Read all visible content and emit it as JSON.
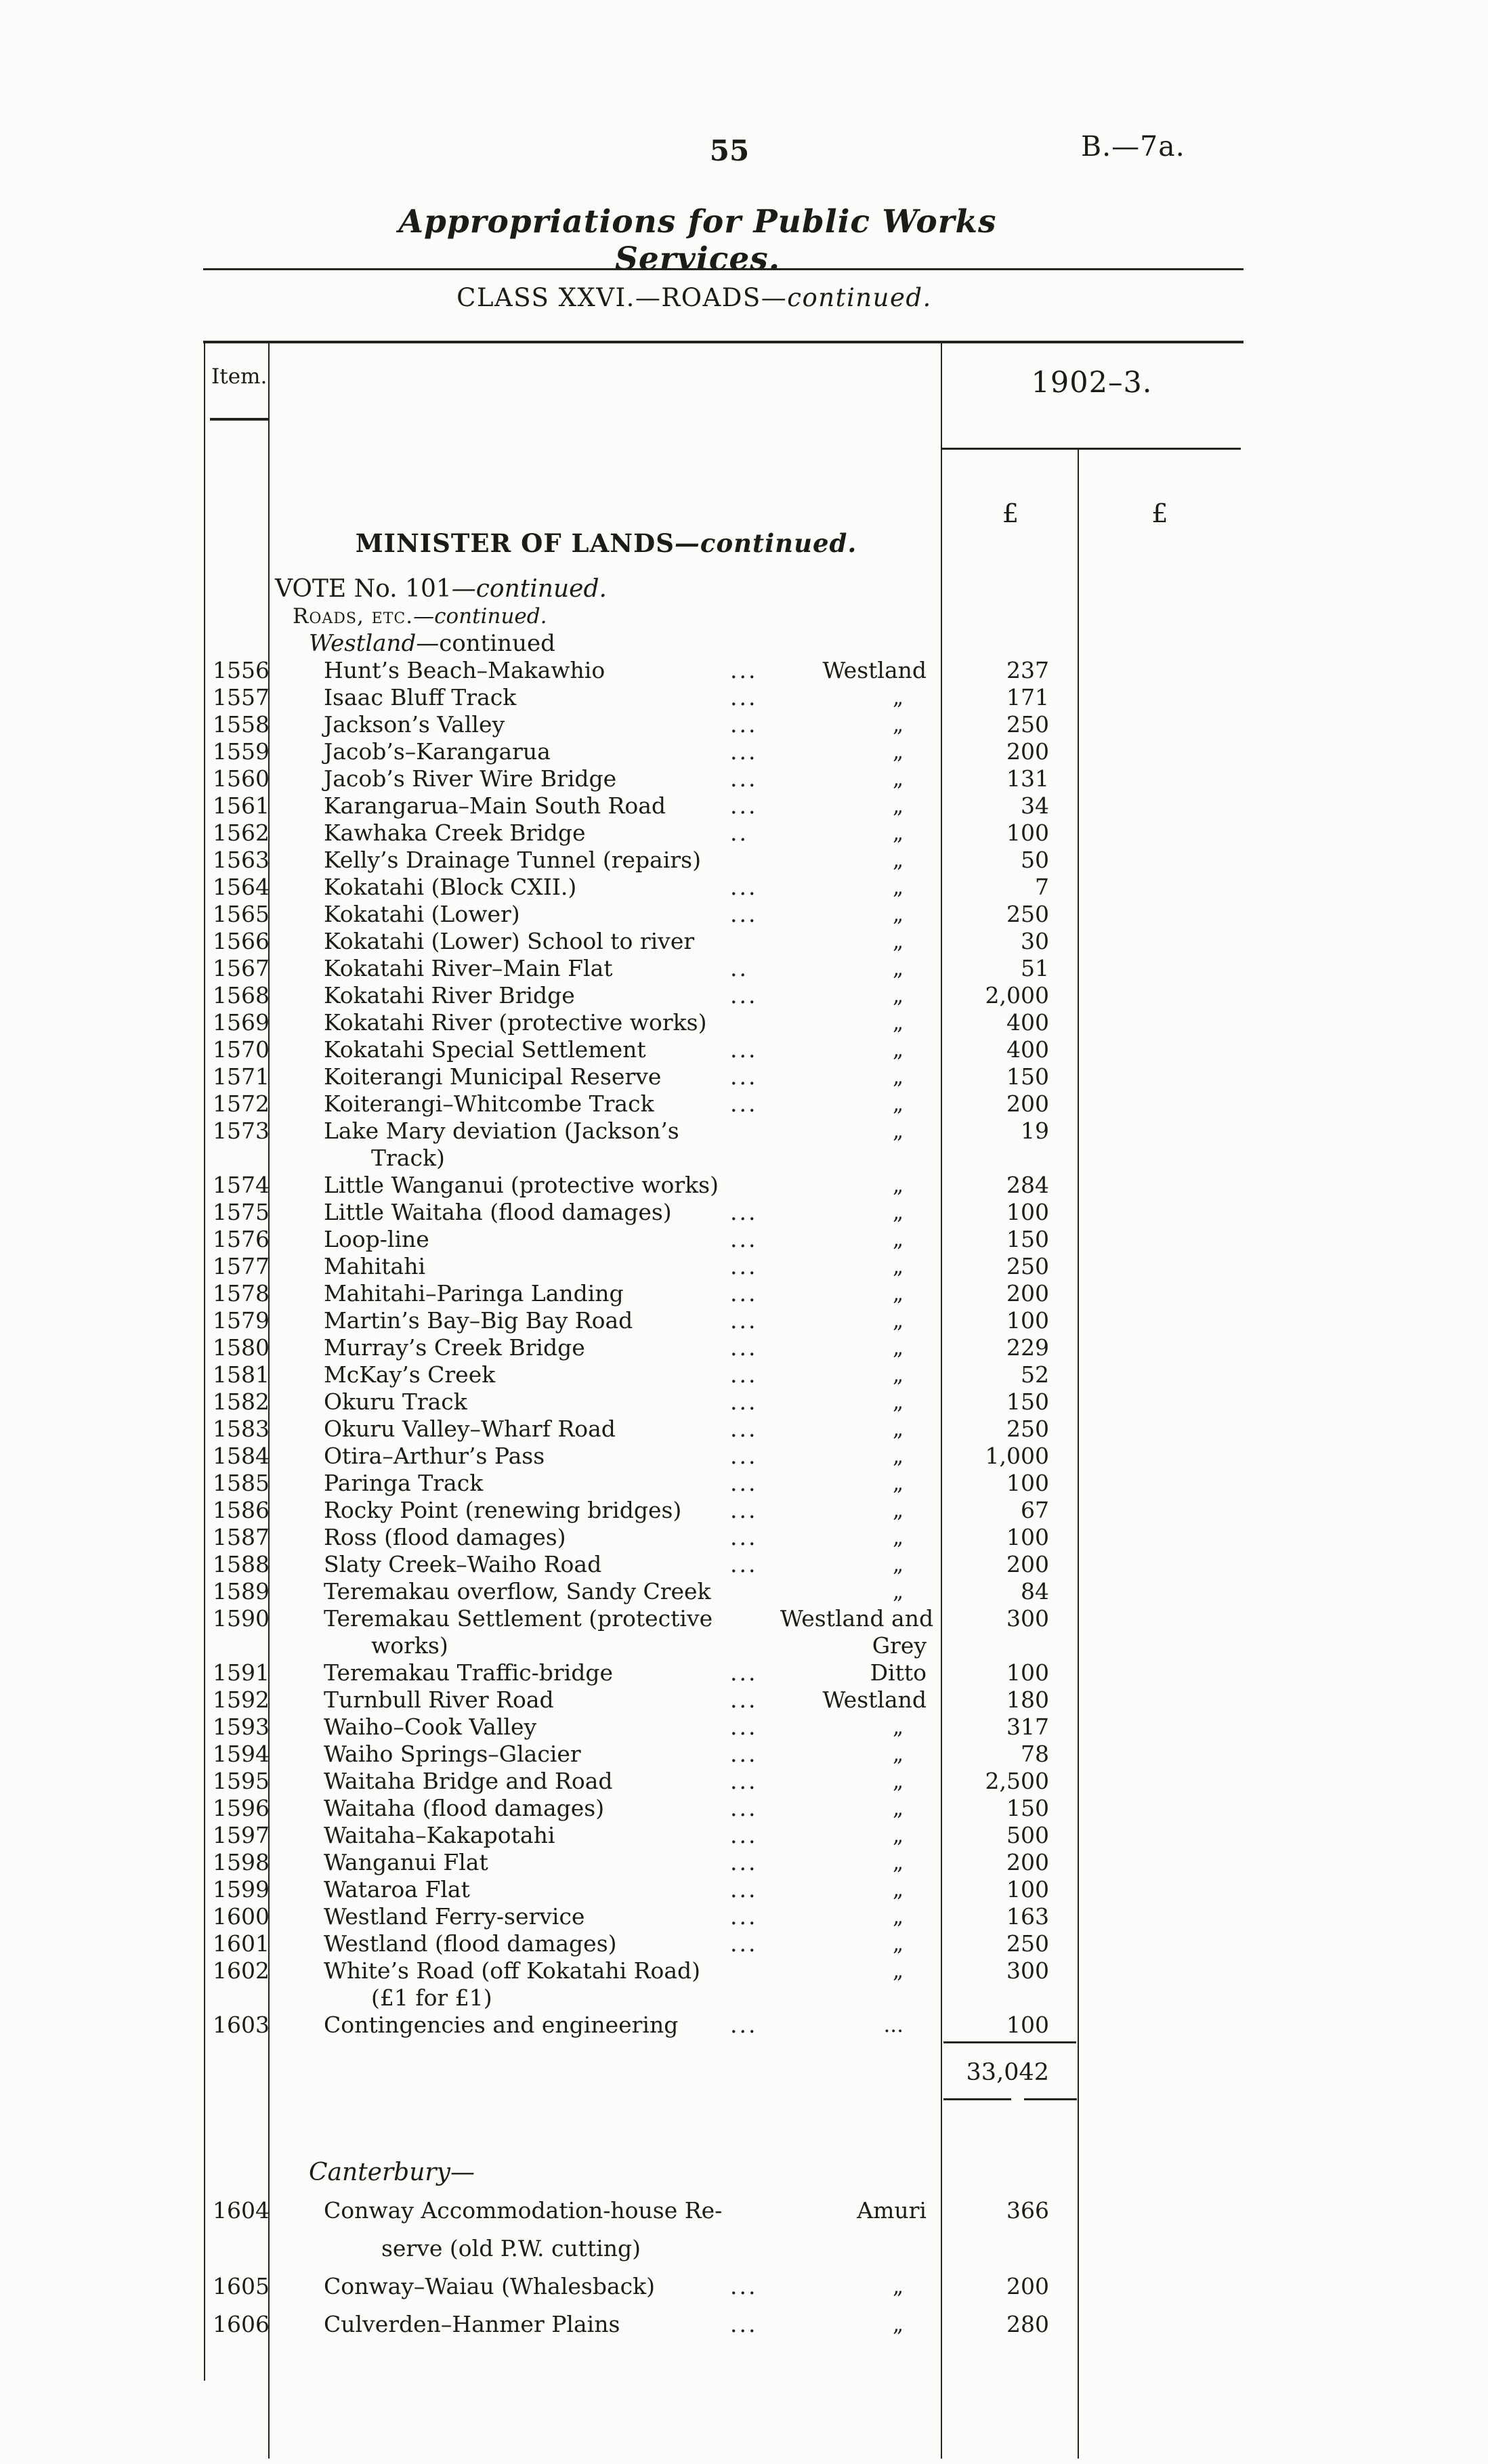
{
  "page": {
    "number": "55",
    "ref": "B.—7a."
  },
  "title": "Appropriations for Public Works Services.",
  "class_heading": {
    "main": "CLASS XXVI.—ROADS—",
    "continued": "continued."
  },
  "colors": {
    "ink": "#1b1b18",
    "paper": "#fcfcfa"
  },
  "table": {
    "item_header": "Item.",
    "year_header": "1902–3.",
    "pound1": "£",
    "pound2": "£",
    "minister_heading": {
      "main": "MINISTER OF LANDS",
      "continued": "—continued."
    },
    "vote_heading": {
      "main": "VOTE No. 101",
      "continued": "—continued."
    },
    "roads_heading": {
      "main": "Roads, etc.",
      "continued": "—continued."
    },
    "westland_heading": {
      "italic": "Westland",
      "rest": "—continued"
    },
    "canterbury_heading": "Canterbury—",
    "westland_total": "33,042",
    "rows": [
      {
        "item": "1556",
        "desc": "Hunt’s Beach–Makawhio",
        "dots": "...",
        "loc": "Westland",
        "amt": "237"
      },
      {
        "item": "1557",
        "desc": "Isaac Bluff Track",
        "dots": "...",
        "loc": "„",
        "amt": "171"
      },
      {
        "item": "1558",
        "desc": "Jackson’s Valley",
        "dots": "...",
        "loc": "„",
        "amt": "250"
      },
      {
        "item": "1559",
        "desc": "Jacob’s–Karangarua",
        "dots": "...",
        "loc": "„",
        "amt": "200"
      },
      {
        "item": "1560",
        "desc": "Jacob’s River Wire Bridge",
        "dots": "...",
        "loc": "„",
        "amt": "131"
      },
      {
        "item": "1561",
        "desc": "Karangarua–Main South Road",
        "dots": "...",
        "loc": "„",
        "amt": "34"
      },
      {
        "item": "1562",
        "desc": "Kawhaka Creek Bridge",
        "dots": "..",
        "loc": "„",
        "amt": "100"
      },
      {
        "item": "1563",
        "desc": "Kelly’s Drainage Tunnel (repairs)",
        "dots": "",
        "loc": "„",
        "amt": "50"
      },
      {
        "item": "1564",
        "desc": "Kokatahi (Block CXII.)",
        "dots": "...",
        "loc": "„",
        "amt": "7"
      },
      {
        "item": "1565",
        "desc": "Kokatahi (Lower)",
        "dots": "...",
        "loc": "„",
        "amt": "250"
      },
      {
        "item": "1566",
        "desc": "Kokatahi (Lower) School to river",
        "dots": "",
        "loc": "„",
        "amt": "30"
      },
      {
        "item": "1567",
        "desc": "Kokatahi River–Main Flat",
        "dots": "..",
        "loc": "„",
        "amt": "51"
      },
      {
        "item": "1568",
        "desc": "Kokatahi River Bridge",
        "dots": "...",
        "loc": "„",
        "amt": "2,000"
      },
      {
        "item": "1569",
        "desc": "Kokatahi River (protective works)",
        "dots": "",
        "loc": "„",
        "amt": "400"
      },
      {
        "item": "1570",
        "desc": "Kokatahi Special Settlement",
        "dots": "...",
        "loc": "„",
        "amt": "400"
      },
      {
        "item": "1571",
        "desc": "Koiterangi Municipal Reserve",
        "dots": "...",
        "loc": "„",
        "amt": "150"
      },
      {
        "item": "1572",
        "desc": "Koiterangi–Whitcombe Track",
        "dots": "...",
        "loc": "„",
        "amt": "200"
      },
      {
        "item": "1573",
        "desc": "Lake Mary deviation (Jackson’s",
        "desc2": "Track)",
        "dots": "",
        "loc": "„",
        "amt": "19"
      },
      {
        "item": "1574",
        "desc": "Little Wanganui (protective works)",
        "dots": "",
        "loc": "„",
        "amt": "284"
      },
      {
        "item": "1575",
        "desc": "Little Waitaha (flood damages)",
        "dots": "...",
        "loc": "„",
        "amt": "100"
      },
      {
        "item": "1576",
        "desc": "Loop-line",
        "dots": "...",
        "loc": "„",
        "amt": "150"
      },
      {
        "item": "1577",
        "desc": "Mahitahi",
        "dots": "...",
        "loc": "„",
        "amt": "250"
      },
      {
        "item": "1578",
        "desc": "Mahitahi–Paringa Landing",
        "dots": "...",
        "loc": "„",
        "amt": "200"
      },
      {
        "item": "1579",
        "desc": "Martin’s Bay–Big Bay Road",
        "dots": "...",
        "loc": "„",
        "amt": "100"
      },
      {
        "item": "1580",
        "desc": "Murray’s Creek Bridge",
        "dots": "...",
        "loc": "„",
        "amt": "229"
      },
      {
        "item": "1581",
        "desc": "McKay’s Creek",
        "dots": "...",
        "loc": "„",
        "amt": "52"
      },
      {
        "item": "1582",
        "desc": "Okuru Track",
        "dots": "...",
        "loc": "„",
        "amt": "150"
      },
      {
        "item": "1583",
        "desc": "Okuru Valley–Wharf Road",
        "dots": "...",
        "loc": "„",
        "amt": "250"
      },
      {
        "item": "1584",
        "desc": "Otira–Arthur’s Pass",
        "dots": "...",
        "loc": "„",
        "amt": "1,000"
      },
      {
        "item": "1585",
        "desc": "Paringa Track",
        "dots": "...",
        "loc": "„",
        "amt": "100"
      },
      {
        "item": "1586",
        "desc": "Rocky Point (renewing bridges)",
        "dots": "...",
        "loc": "„",
        "amt": "67"
      },
      {
        "item": "1587",
        "desc": "Ross (flood damages)",
        "dots": "...",
        "loc": "„",
        "amt": "100"
      },
      {
        "item": "1588",
        "desc": "Slaty Creek–Waiho Road",
        "dots": "...",
        "loc": "„",
        "amt": "200"
      },
      {
        "item": "1589",
        "desc": "Teremakau overflow, Sandy Creek",
        "dots": "",
        "loc": "„",
        "amt": "84"
      },
      {
        "item": "1590",
        "desc": "Teremakau Settlement (protective",
        "desc2": "works)",
        "dots": "",
        "loc": "Westland and",
        "loc2": "Grey",
        "amt": "300"
      },
      {
        "item": "1591",
        "desc": "Teremakau Traffic-bridge",
        "dots": "...",
        "loc": "Ditto",
        "amt": "100"
      },
      {
        "item": "1592",
        "desc": "Turnbull River Road",
        "dots": "...",
        "loc": "Westland",
        "amt": "180"
      },
      {
        "item": "1593",
        "desc": "Waiho–Cook Valley",
        "dots": "...",
        "loc": "„",
        "amt": "317"
      },
      {
        "item": "1594",
        "desc": "Waiho Springs–Glacier",
        "dots": "...",
        "loc": "„",
        "amt": "78"
      },
      {
        "item": "1595",
        "desc": "Waitaha Bridge and Road",
        "dots": "...",
        "loc": "„",
        "amt": "2,500"
      },
      {
        "item": "1596",
        "desc": "Waitaha (flood damages)",
        "dots": "...",
        "loc": "„",
        "amt": "150"
      },
      {
        "item": "1597",
        "desc": "Waitaha–Kakapotahi",
        "dots": "...",
        "loc": "„",
        "amt": "500"
      },
      {
        "item": "1598",
        "desc": "Wanganui Flat",
        "dots": "...",
        "loc": "„",
        "amt": "200"
      },
      {
        "item": "1599",
        "desc": "Wataroa Flat",
        "dots": "...",
        "loc": "„",
        "amt": "100"
      },
      {
        "item": "1600",
        "desc": "Westland Ferry-service",
        "dots": "...",
        "loc": "„",
        "amt": "163"
      },
      {
        "item": "1601",
        "desc": "Westland (flood damages)",
        "dots": "...",
        "loc": "„",
        "amt": "250"
      },
      {
        "item": "1602",
        "desc": "White’s Road (off Kokatahi Road)",
        "desc2": "(£1 for £1)",
        "dots": "",
        "loc": "„",
        "amt": "300"
      },
      {
        "item": "1603",
        "desc": "Contingencies and engineering",
        "dots": "...",
        "loc": "...",
        "amt": "100"
      }
    ],
    "canterbury_rows": [
      {
        "item": "1604",
        "desc": "Conway Accommodation-house Re-",
        "desc2": "serve (old P.W. cutting)",
        "dots": "",
        "loc": "Amuri",
        "amt": "366"
      },
      {
        "item": "1605",
        "desc": "Conway–Waiau (Whalesback)",
        "dots": "...",
        "loc": "„",
        "amt": "200"
      },
      {
        "item": "1606",
        "desc": "Culverden–Hanmer Plains",
        "dots": "...",
        "loc": "„",
        "amt": "280"
      }
    ]
  }
}
